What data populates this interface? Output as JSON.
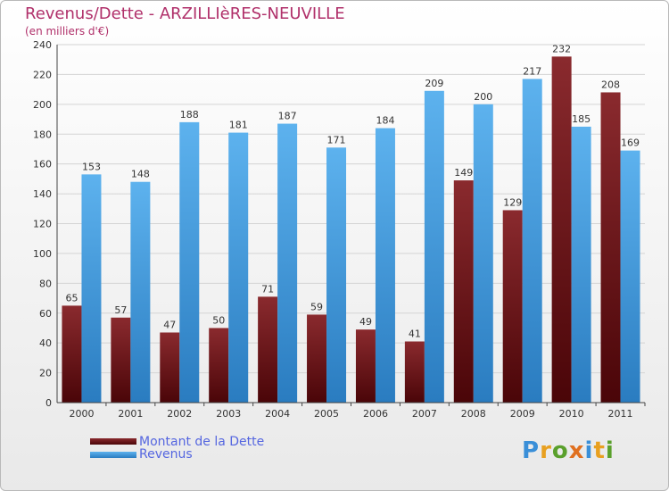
{
  "title": "Revenus/Dette - ARZILLIèRES-NEUVILLE",
  "subtitle": "(en milliers d'€)",
  "legend": {
    "dette_label": "Montant de la Dette",
    "revenus_label": "Revenus"
  },
  "logo_text": "Proxiti",
  "colors": {
    "dette": "#7a1b20",
    "dette_dark": "#4a0508",
    "revenus": "#5aaeea",
    "revenus_dark": "#2a7cc0",
    "title": "#b0306a",
    "legend_text": "#5566e0"
  },
  "chart_data": {
    "type": "bar",
    "categories": [
      "2000",
      "2001",
      "2002",
      "2003",
      "2004",
      "2005",
      "2006",
      "2007",
      "2008",
      "2009",
      "2010",
      "2011"
    ],
    "series": [
      {
        "name": "Montant de la Dette",
        "values": [
          65,
          57,
          47,
          50,
          71,
          59,
          49,
          41,
          149,
          129,
          232,
          208
        ]
      },
      {
        "name": "Revenus",
        "values": [
          153,
          148,
          188,
          181,
          187,
          171,
          184,
          209,
          200,
          217,
          185,
          169
        ]
      }
    ],
    "ylim": [
      0,
      240
    ],
    "yticks": [
      0,
      20,
      40,
      60,
      80,
      100,
      120,
      140,
      160,
      180,
      200,
      220,
      240
    ],
    "grid": true
  }
}
